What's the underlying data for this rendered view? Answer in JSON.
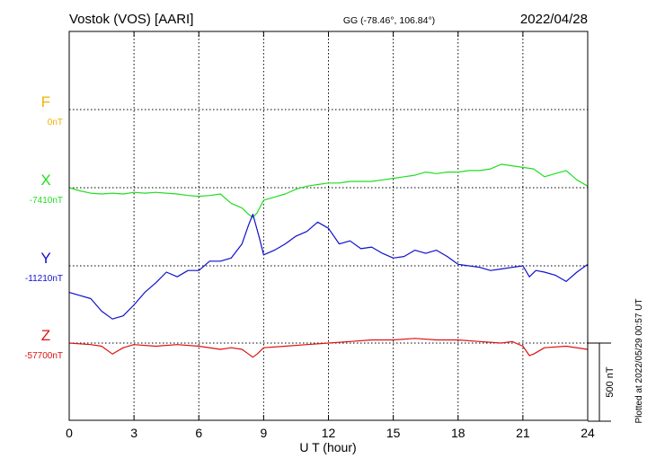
{
  "header": {
    "station": "Vostok (VOS)  [AARI]",
    "coords": "GG (-78.46°, 106.84°)",
    "date": "2022/04/28"
  },
  "side_note": "Plotted at 2022/05/29 00:57 UT",
  "chart_data": {
    "type": "line",
    "xlabel": "U T (hour)",
    "xlim": [
      0,
      24
    ],
    "x_ticks": [
      0,
      3,
      6,
      9,
      12,
      15,
      18,
      21,
      24
    ],
    "x_tick_labels": [
      "0",
      "3",
      "6",
      "9",
      "12",
      "15",
      "18",
      "21",
      "24"
    ],
    "grid": true,
    "scale_bar": {
      "label": "500 nT",
      "value_nT": 500
    },
    "series": [
      {
        "name": "F",
        "baseline_label": "0nT",
        "baseline_nT": 0,
        "color": "#f0b400",
        "x": [],
        "y": []
      },
      {
        "name": "X",
        "baseline_label": "-7410nT",
        "baseline_nT": -7410,
        "color": "#22dd22",
        "x": [
          0,
          0.5,
          1,
          1.5,
          2,
          2.5,
          3,
          3.5,
          4,
          4.5,
          5,
          5.5,
          6,
          6.5,
          7,
          7.5,
          8,
          8.3,
          8.5,
          8.7,
          9,
          9.5,
          10,
          10.5,
          11,
          11.5,
          12,
          12.5,
          13,
          13.5,
          14,
          14.5,
          15,
          15.5,
          16,
          16.5,
          17,
          17.5,
          18,
          18.5,
          19,
          19.5,
          20,
          20.5,
          21,
          21.5,
          22,
          22.5,
          23,
          23.5,
          24
        ],
        "y": [
          -7410,
          -7430,
          -7445,
          -7450,
          -7445,
          -7450,
          -7440,
          -7445,
          -7440,
          -7445,
          -7450,
          -7460,
          -7465,
          -7460,
          -7450,
          -7510,
          -7540,
          -7580,
          -7600,
          -7570,
          -7490,
          -7470,
          -7450,
          -7420,
          -7400,
          -7390,
          -7380,
          -7380,
          -7370,
          -7370,
          -7370,
          -7360,
          -7350,
          -7340,
          -7330,
          -7310,
          -7320,
          -7310,
          -7310,
          -7300,
          -7300,
          -7290,
          -7260,
          -7270,
          -7280,
          -7290,
          -7340,
          -7320,
          -7300,
          -7360,
          -7400
        ]
      },
      {
        "name": "Y",
        "baseline_label": "-11210nT",
        "baseline_nT": -11210,
        "color": "#1010cc",
        "x": [
          0,
          0.5,
          1,
          1.5,
          2,
          2.5,
          3,
          3.5,
          4,
          4.5,
          5,
          5.5,
          6,
          6.5,
          7,
          7.5,
          8,
          8.3,
          8.5,
          8.8,
          9,
          9.5,
          10,
          10.5,
          11,
          11.5,
          12,
          12.5,
          13,
          13.5,
          14,
          14.5,
          15,
          15.5,
          16,
          16.5,
          17,
          17.5,
          18,
          18.5,
          19,
          19.5,
          20,
          20.5,
          21,
          21.3,
          21.6,
          22,
          22.5,
          23,
          23.5,
          24
        ],
        "y": [
          -11380,
          -11400,
          -11420,
          -11500,
          -11550,
          -11530,
          -11460,
          -11380,
          -11320,
          -11250,
          -11280,
          -11240,
          -11240,
          -11180,
          -11180,
          -11160,
          -11070,
          -10950,
          -10880,
          -11030,
          -11140,
          -11110,
          -11070,
          -11020,
          -10990,
          -10930,
          -10970,
          -11070,
          -11050,
          -11100,
          -11090,
          -11130,
          -11160,
          -11150,
          -11110,
          -11130,
          -11110,
          -11150,
          -11200,
          -11210,
          -11220,
          -11240,
          -11230,
          -11220,
          -11210,
          -11280,
          -11240,
          -11250,
          -11270,
          -11310,
          -11250,
          -11200
        ]
      },
      {
        "name": "Z",
        "baseline_label": "-57700nT",
        "baseline_nT": -57700,
        "color": "#dd1111",
        "x": [
          0,
          1,
          1.5,
          2,
          2.5,
          3,
          4,
          5,
          6,
          7,
          7.5,
          8,
          8.3,
          8.5,
          8.7,
          9,
          10,
          11,
          12,
          13,
          14,
          15,
          16,
          17,
          18,
          19,
          20,
          20.5,
          21,
          21.3,
          21.5,
          22,
          23,
          24
        ],
        "y": [
          -57700,
          -57710,
          -57720,
          -57770,
          -57730,
          -57710,
          -57720,
          -57710,
          -57720,
          -57740,
          -57730,
          -57740,
          -57770,
          -57790,
          -57770,
          -57730,
          -57720,
          -57710,
          -57700,
          -57690,
          -57680,
          -57680,
          -57670,
          -57680,
          -57680,
          -57690,
          -57700,
          -57690,
          -57720,
          -57780,
          -57770,
          -57730,
          -57720,
          -57740
        ]
      }
    ]
  }
}
